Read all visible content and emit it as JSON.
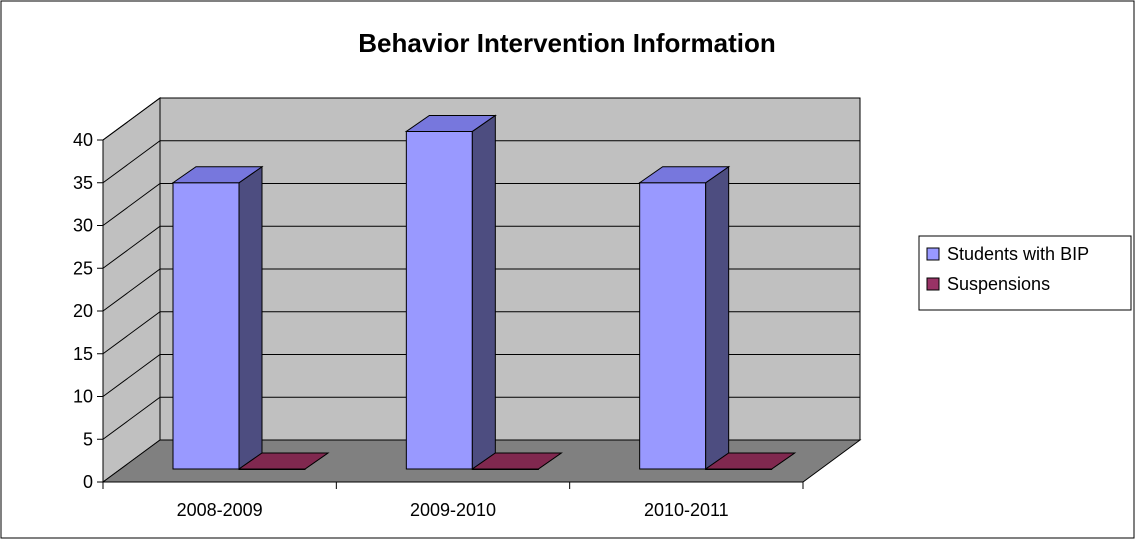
{
  "chart_data": {
    "type": "bar",
    "title": "Behavior Intervention Information",
    "xlabel": "",
    "ylabel": "",
    "categories": [
      "2008-2009",
      "2009-2010",
      "2010-2011"
    ],
    "series": [
      {
        "name": "Students with BIP",
        "values": [
          35,
          41,
          35
        ]
      },
      {
        "name": "Suspensions",
        "values": [
          0,
          0,
          1
        ]
      }
    ],
    "ylim": [
      0,
      40
    ],
    "yticks": [
      0,
      5,
      10,
      15,
      20,
      25,
      30,
      35,
      40
    ],
    "grid": true,
    "legend": "right",
    "three_d": true,
    "colors": {
      "series_front": [
        "#9999ff",
        "#993366"
      ],
      "series_side": [
        "#4d4d80",
        "#4d1a33"
      ],
      "series_top": [
        "#7777dd",
        "#80284f"
      ],
      "wall": "#c0c0c0",
      "floor": "#808080",
      "gridline": "#000000"
    }
  }
}
